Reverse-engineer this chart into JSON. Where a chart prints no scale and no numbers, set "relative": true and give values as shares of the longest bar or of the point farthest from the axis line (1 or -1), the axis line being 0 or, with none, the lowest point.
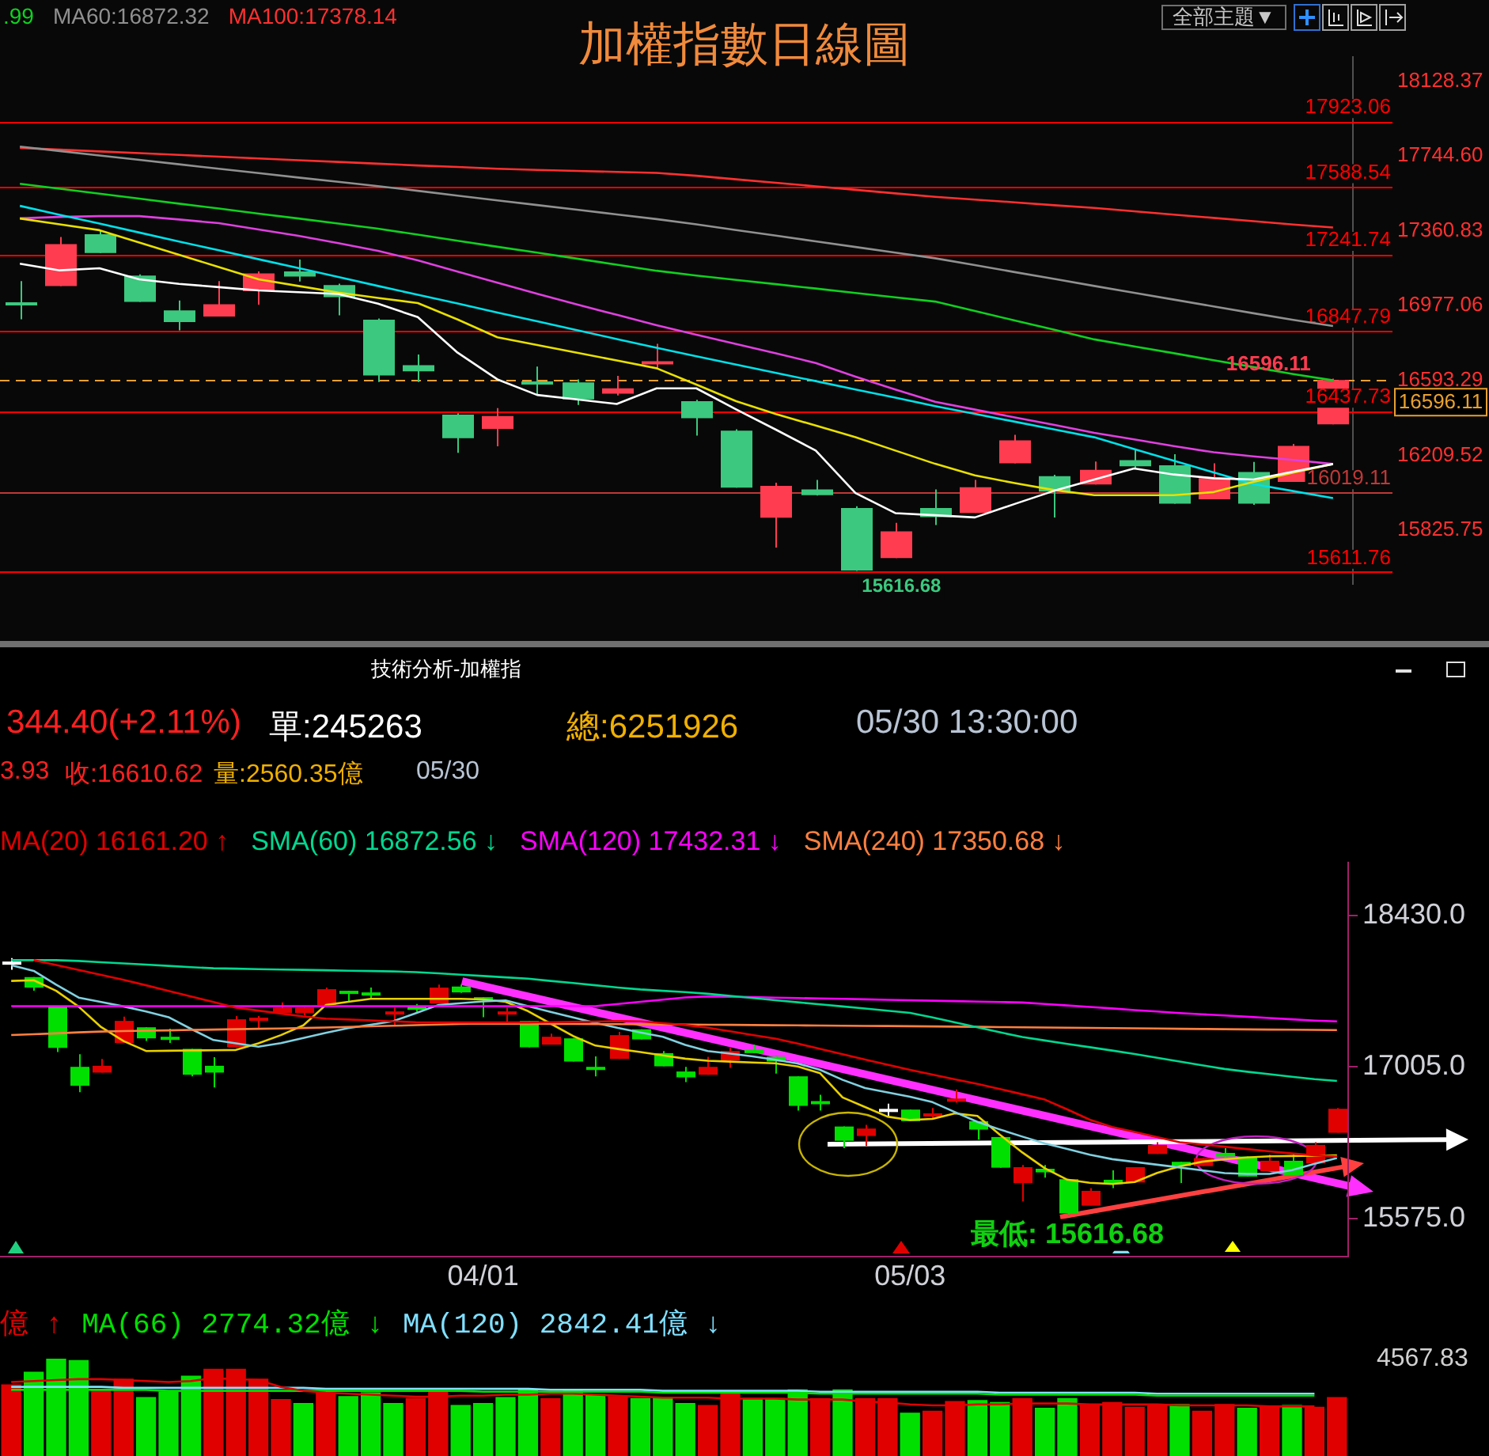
{
  "chart_data": [
    {
      "type": "candlestick",
      "title": "加權指數日線圖",
      "tick_labels": "y",
      "marker": "none",
      "categories": [
        null,
        null,
        null,
        null,
        null,
        null,
        null,
        null,
        null,
        null,
        null,
        null,
        null,
        null,
        null,
        null,
        null,
        null,
        null,
        null,
        null,
        null,
        null,
        null,
        null,
        null,
        null,
        null,
        null,
        null,
        null,
        null,
        null,
        null
      ],
      "ylim": [
        15548,
        18254
      ],
      "yticks": [
        {
          "value": 18128.37,
          "label": "18128.37"
        },
        {
          "value": 17744.6,
          "label": "17744.60"
        },
        {
          "value": 17360.83,
          "label": "17360.83"
        },
        {
          "value": 16977.06,
          "label": "16977.06"
        },
        {
          "value": 16593.29,
          "label": "16593.29"
        },
        {
          "value": 16209.52,
          "label": "16209.52"
        },
        {
          "value": 15825.75,
          "label": "15825.75"
        }
      ],
      "ohlc": [
        [
          16994,
          17103,
          16907,
          16989
        ],
        [
          17078,
          17329,
          17078,
          17293
        ],
        [
          17343,
          17364,
          17247,
          17247
        ],
        [
          17131,
          17137,
          16996,
          16996
        ],
        [
          16953,
          17003,
          16850,
          16893
        ],
        [
          16921,
          17103,
          16921,
          16984
        ],
        [
          17051,
          17153,
          16982,
          17142
        ],
        [
          17153,
          17213,
          17101,
          17126
        ],
        [
          17083,
          17090,
          16927,
          17021
        ],
        [
          16905,
          16911,
          16585,
          16619
        ],
        [
          16672,
          16726,
          16585,
          16640
        ],
        [
          16418,
          16425,
          16222,
          16297
        ],
        [
          16345,
          16452,
          16256,
          16411
        ],
        [
          16589,
          16665,
          16519,
          16585
        ],
        [
          16583,
          16599,
          16468,
          16496
        ],
        [
          16526,
          16617,
          16516,
          16553
        ],
        [
          16688,
          16781,
          16649,
          16692
        ],
        [
          16487,
          16494,
          16311,
          16400
        ],
        [
          16336,
          16343,
          16044,
          16044
        ],
        [
          15889,
          16069,
          15736,
          16053
        ],
        [
          16035,
          16083,
          16003,
          16005
        ],
        [
          15939,
          15948,
          15616.68,
          15619
        ],
        [
          15683,
          15863,
          15683,
          15820
        ],
        [
          15939,
          16035,
          15852,
          15893
        ],
        [
          15914,
          16083,
          15914,
          16046
        ],
        [
          16169,
          16315,
          16169,
          16286
        ],
        [
          16103,
          16110,
          15891,
          16023
        ],
        [
          16060,
          16178,
          16060,
          16135
        ],
        [
          16185,
          16238,
          16142,
          16153
        ],
        [
          16158,
          16215,
          15962,
          15962
        ],
        [
          15984,
          16169,
          15984,
          16092
        ],
        [
          16124,
          16176,
          15955,
          15962
        ],
        [
          16073,
          16268,
          16073,
          16258
        ],
        [
          16368,
          16603,
          16368,
          16596.11
        ]
      ],
      "colors": [
        "#3cc87e",
        "#ff3c50",
        "#3cc87e",
        "#3cc87e",
        "#3cc87e",
        "#ff3c50",
        "#ff3c50",
        "#3cc87e",
        "#3cc87e",
        "#3cc87e",
        "#3cc87e",
        "#3cc87e",
        "#ff3c50",
        "#3cc87e",
        "#3cc87e",
        "#ff3c50",
        "#ff3c50",
        "#3cc87e",
        "#3cc87e",
        "#ff3c50",
        "#3cc87e",
        "#3cc87e",
        "#ff3c50",
        "#3cc87e",
        "#ff3c50",
        "#ff3c50",
        "#3cc87e",
        "#ff3c50",
        "#3cc87e",
        "#3cc87e",
        "#ff3c50",
        "#3cc87e",
        "#ff3c50",
        "#ff3c50"
      ],
      "series": [
        {
          "type": "line",
          "name": ".99",
          "color": "#10d020",
          "values": [
            17602,
            17577,
            17551,
            17526,
            17500,
            17475,
            17449,
            17424,
            17398,
            17372,
            17341,
            17310,
            17279,
            17249,
            17218,
            17187,
            17156,
            17131,
            17109,
            17087,
            17065,
            17042,
            17020,
            16998,
            16950,
            16901,
            16853,
            16804,
            16768,
            16733,
            16697,
            16662,
            16626,
            16594
          ]
        },
        {
          "type": "line",
          "name": "MA60:16872.32",
          "color": "#909090",
          "values": [
            17793,
            17770,
            17747,
            17725,
            17702,
            17679,
            17657,
            17634,
            17612,
            17590,
            17566,
            17541,
            17517,
            17493,
            17469,
            17445,
            17421,
            17394,
            17365,
            17336,
            17307,
            17278,
            17249,
            17220,
            17185,
            17149,
            17114,
            17078,
            17043,
            17008,
            16973,
            16938,
            16904,
            16872.32
          ]
        },
        {
          "type": "line",
          "name": "MA100:17378.14",
          "color": "#ff3030",
          "values": [
            17786,
            17777,
            17768,
            17759,
            17750,
            17741,
            17732,
            17723,
            17714,
            17705,
            17696,
            17688,
            17679,
            17673,
            17668,
            17663,
            17658,
            17643,
            17625,
            17607,
            17589,
            17571,
            17553,
            17535,
            17521,
            17507,
            17492,
            17478,
            17461,
            17444,
            17427,
            17410,
            17393,
            17378.14
          ]
        },
        {
          "type": "line",
          "color": "#ffffff",
          "values": [
            17192,
            17158,
            17169,
            17112,
            17089,
            17072,
            17055,
            17046,
            17037,
            16987,
            16918,
            16736,
            16599,
            16519,
            16496,
            16473,
            16553,
            16553,
            16445,
            16341,
            16234,
            16016,
            15913,
            15902,
            15891,
            15960,
            16028,
            16085,
            16142,
            16111,
            16092,
            16085,
            16126,
            16165
          ]
        },
        {
          "type": "line",
          "color": "#e8e000",
          "values": [
            17424,
            17394,
            17364,
            17301,
            17238,
            17175,
            17112,
            17078,
            17044,
            17017,
            16990,
            16906,
            16815,
            16775,
            16736,
            16696,
            16656,
            16572,
            16487,
            16421,
            16362,
            16302,
            16234,
            16166,
            16107,
            16067,
            16031,
            16005,
            16005,
            16005,
            16021,
            16073,
            16121,
            16165
          ]
        },
        {
          "type": "line",
          "color": "#00e0e8",
          "values": [
            17489,
            17443,
            17398,
            17352,
            17306,
            17261,
            17215,
            17170,
            17124,
            17078,
            17033,
            16988,
            16942,
            16897,
            16851,
            16806,
            16761,
            16717,
            16675,
            16632,
            16590,
            16547,
            16505,
            16462,
            16422,
            16382,
            16342,
            16302,
            16242,
            16182,
            16122,
            16062,
            16026,
            15990
          ]
        },
        {
          "type": "line",
          "color": "#e040e0",
          "values": [
            17425,
            17432,
            17436,
            17436,
            17419,
            17400,
            17368,
            17335,
            17298,
            17258,
            17209,
            17152,
            17095,
            17038,
            16983,
            16930,
            16877,
            16828,
            16780,
            16733,
            16683,
            16613,
            16547,
            16484,
            16444,
            16404,
            16365,
            16325,
            16291,
            16257,
            16225,
            16204,
            16186,
            16165
          ]
        }
      ],
      "ref_lines": [
        {
          "axis": "y",
          "value": 17923.06,
          "label": "17923.06",
          "color": "#ff0000"
        },
        {
          "axis": "y",
          "value": 17588.54,
          "label": "17588.54",
          "color": "#ff0000"
        },
        {
          "axis": "y",
          "value": 17241.74,
          "label": "17241.74",
          "color": "#ff0000"
        },
        {
          "axis": "y",
          "value": 16847.79,
          "label": "16847.79",
          "color": "#ff0000"
        },
        {
          "axis": "y",
          "value": 16437.73,
          "label": "16437.73",
          "color": "#ff0000"
        },
        {
          "axis": "y",
          "value": 16019.11,
          "label": "16019.11",
          "color": "#c03838"
        },
        {
          "axis": "y",
          "value": 15611.76,
          "label": "15611.76",
          "color": "#ff0000"
        },
        {
          "axis": "y",
          "value": 16596.11,
          "label": "16596.11",
          "color": "#e8a030",
          "line_style": "dashed"
        }
      ],
      "annotations": [
        "全部主題▼",
        {
          "text": "15616.68",
          "y": 15616.68
        },
        {
          "text": "16596.11",
          "y": 16596.11
        }
      ]
    },
    {
      "type": "candlestick",
      "title": "技術分析-加權指",
      "marker": "none",
      "categories": [
        null,
        null,
        null,
        null,
        null,
        null,
        null,
        null,
        null,
        null,
        null,
        null,
        null,
        null,
        null,
        null,
        null,
        null,
        null,
        null,
        null,
        "04/01",
        null,
        null,
        null,
        null,
        null,
        null,
        null,
        null,
        null,
        null,
        null,
        null,
        null,
        null,
        null,
        null,
        null,
        null,
        "05/03",
        null,
        null,
        null,
        null,
        null,
        null,
        null,
        null,
        null,
        null,
        null,
        null,
        null,
        null,
        null,
        null,
        null,
        null,
        null
      ],
      "ylim": [
        15221,
        18926
      ],
      "yticks": [
        {
          "value": 18430,
          "label": "18430.0"
        },
        {
          "value": 17005,
          "label": "17005.0"
        },
        {
          "value": 15575,
          "label": "15575.0"
        }
      ],
      "ohlc": [
        [
          17995,
          18028,
          17918,
          17965
        ],
        [
          17849,
          17849,
          17720,
          17750
        ],
        [
          17576,
          17576,
          17144,
          17184
        ],
        [
          17005,
          17124,
          16767,
          16827
        ],
        [
          16951,
          17080,
          16951,
          17015
        ],
        [
          17229,
          17477,
          17229,
          17437
        ],
        [
          17377,
          17377,
          17248,
          17273
        ],
        [
          17288,
          17363,
          17229,
          17278
        ],
        [
          17174,
          17174,
          16916,
          16931
        ],
        [
          17015,
          17095,
          16812,
          16951
        ],
        [
          17189,
          17482,
          17189,
          17452
        ],
        [
          17457,
          17482,
          17363,
          17467
        ],
        [
          17511,
          17611,
          17511,
          17561
        ],
        [
          17511,
          17561,
          17487,
          17561
        ],
        [
          17586,
          17750,
          17586,
          17735
        ],
        [
          17720,
          17720,
          17621,
          17710
        ],
        [
          17705,
          17750,
          17645,
          17695
        ],
        [
          17516,
          17561,
          17387,
          17526
        ],
        [
          17571,
          17596,
          17521,
          17561
        ],
        [
          17601,
          17779,
          17601,
          17750
        ],
        [
          17760,
          17779,
          17700,
          17705
        ],
        [
          17660,
          17660,
          17472,
          17645
        ],
        [
          17497,
          17561,
          17422,
          17526
        ],
        [
          17437,
          17437,
          17189,
          17189
        ],
        [
          17214,
          17318,
          17214,
          17288
        ],
        [
          17273,
          17273,
          17055,
          17055
        ],
        [
          17005,
          17104,
          16916,
          16995
        ],
        [
          17080,
          17333,
          17080,
          17303
        ],
        [
          17358,
          17358,
          17263,
          17263
        ],
        [
          17134,
          17154,
          17010,
          17010
        ],
        [
          16961,
          17005,
          16861,
          16906
        ],
        [
          16931,
          17100,
          16931,
          17005
        ],
        [
          17065,
          17184,
          16995,
          17154
        ],
        [
          17164,
          17214,
          17134,
          17134
        ],
        [
          17100,
          17104,
          16941,
          17055
        ],
        [
          16916,
          16916,
          16593,
          16638
        ],
        [
          16683,
          16742,
          16593,
          16658
        ],
        [
          16444,
          16444,
          16241,
          16310
        ],
        [
          16355,
          16459,
          16261,
          16425
        ],
        [
          16610,
          16658,
          16534,
          16580
        ],
        [
          16603,
          16603,
          16494,
          16494
        ],
        [
          16544,
          16618,
          16519,
          16568
        ],
        [
          16693,
          16792,
          16668,
          16707
        ],
        [
          16494,
          16494,
          16320,
          16415
        ],
        [
          16345,
          16345,
          16057,
          16057
        ],
        [
          15913,
          16082,
          15740,
          16062
        ],
        [
          16047,
          16082,
          15963,
          16013
        ],
        [
          15948,
          15948,
          15616.68,
          15626
        ],
        [
          15700,
          15864,
          15700,
          15839
        ],
        [
          15943,
          16032,
          15864,
          15903
        ],
        [
          15918,
          16062,
          15918,
          16062
        ],
        [
          16186,
          16296,
          16186,
          16271
        ],
        [
          16112,
          16112,
          15913,
          16072
        ],
        [
          16072,
          16147,
          16072,
          16147
        ],
        [
          16196,
          16241,
          16122,
          16162
        ],
        [
          16162,
          16162,
          15973,
          15973
        ],
        [
          16023,
          16181,
          16023,
          16122
        ],
        [
          16122,
          16181,
          15988,
          15988
        ],
        [
          16097,
          16296,
          16097,
          16271
        ],
        [
          16385,
          16618,
          16385,
          16610.62
        ]
      ],
      "colors": [
        "#ffffff",
        "#00e000",
        "#00e000",
        "#00e000",
        "#e00000",
        "#e00000",
        "#00e000",
        "#00e000",
        "#00e000",
        "#00e000",
        "#e00000",
        "#e00000",
        "#e00000",
        "#e00000",
        "#e00000",
        "#00e000",
        "#00e000",
        "#e00000",
        "#00e000",
        "#e00000",
        "#00e000",
        "#00e000",
        "#e00000",
        "#00e000",
        "#e00000",
        "#00e000",
        "#00e000",
        "#e00000",
        "#00e000",
        "#00e000",
        "#00e000",
        "#e00000",
        "#e00000",
        "#00e000",
        "#00e000",
        "#00e000",
        "#00e000",
        "#00e000",
        "#e00000",
        "#ffffff",
        "#00e000",
        "#e00000",
        "#e00000",
        "#00e000",
        "#00e000",
        "#e00000",
        "#00e000",
        "#00e000",
        "#e00000",
        "#00e000",
        "#e00000",
        "#e00000",
        "#00e000",
        "#e00000",
        "#00e000",
        "#00e000",
        "#e00000",
        "#00e000",
        "#e00000",
        "#e00000"
      ],
      "series": [
        {
          "type": "line",
          "name": "MA(20) 16161.20 ↑",
          "color": "#e00000",
          "values": [
            null,
            18008,
            17962,
            17916,
            17869,
            17823,
            17772,
            17719,
            17666,
            17614,
            17561,
            17534,
            17506,
            17479,
            17459,
            17450,
            17442,
            17433,
            17425,
            17422,
            17422,
            17422,
            17422,
            17422,
            17425,
            17428,
            17431,
            17435,
            17433,
            17416,
            17398,
            17373,
            17339,
            17304,
            17270,
            17224,
            17174,
            17124,
            17074,
            17025,
            16977,
            16932,
            16888,
            16844,
            16797,
            16747,
            16697,
            16605,
            16508,
            16440,
            16392,
            16344,
            16296,
            16275,
            16254,
            16232,
            16211,
            16191,
            16173,
            16161.2
          ]
        },
        {
          "type": "line",
          "name": "SMA(60) 16872.56 ↓",
          "color": "#00d890",
          "values": [
            18008,
            18008,
            18008,
            18001,
            17989,
            17977,
            17966,
            17954,
            17942,
            17932,
            17928,
            17924,
            17920,
            17917,
            17913,
            17909,
            17906,
            17902,
            17896,
            17884,
            17871,
            17859,
            17846,
            17834,
            17813,
            17793,
            17772,
            17751,
            17733,
            17720,
            17708,
            17692,
            17672,
            17652,
            17632,
            17612,
            17593,
            17573,
            17553,
            17533,
            17513,
            17469,
            17423,
            17376,
            17330,
            17285,
            17253,
            17221,
            17190,
            17158,
            17125,
            17090,
            17055,
            17020,
            16985,
            16959,
            16936,
            16912,
            16889,
            16872.56
          ]
        },
        {
          "type": "line",
          "name": "SMA(120) 17432.31 ↓",
          "color": "#ff00ff",
          "values": [
            17576,
            17576,
            17576,
            17576,
            17576,
            17576,
            17576,
            17576,
            17576,
            17576,
            17576,
            17576,
            17576,
            17576,
            17576,
            17576,
            17576,
            17576,
            17576,
            17576,
            17576,
            17576,
            17576,
            17576,
            17576,
            17576,
            17576,
            17596,
            17617,
            17637,
            17658,
            17668,
            17664,
            17660,
            17656,
            17652,
            17648,
            17644,
            17640,
            17635,
            17631,
            17627,
            17623,
            17619,
            17615,
            17610,
            17596,
            17582,
            17568,
            17554,
            17539,
            17525,
            17511,
            17499,
            17488,
            17476,
            17464,
            17452,
            17440,
            17432.31
          ]
        },
        {
          "type": "line",
          "name": "SMA(240) 17350.68 ↓",
          "color": "#ff8040",
          "values": [
            17304,
            17312,
            17320,
            17329,
            17337,
            17341,
            17345,
            17348,
            17352,
            17355,
            17359,
            17363,
            17366,
            17370,
            17375,
            17380,
            17386,
            17391,
            17397,
            17403,
            17408,
            17412,
            17411,
            17410,
            17409,
            17408,
            17407,
            17406,
            17405,
            17404,
            17403,
            17401,
            17400,
            17398,
            17396,
            17395,
            17393,
            17392,
            17390,
            17389,
            17387,
            17385,
            17383,
            17381,
            17379,
            17377,
            17375,
            17373,
            17371,
            17369,
            17367,
            17365,
            17363,
            17361,
            17359,
            17357,
            17355,
            17354,
            17352,
            17350.68
          ]
        },
        {
          "type": "line",
          "color": "#80d0e0",
          "values": [
            17960,
            17907,
            17777,
            17656,
            17615,
            17573,
            17525,
            17472,
            17362,
            17257,
            17226,
            17195,
            17228,
            17276,
            17324,
            17369,
            17401,
            17434,
            17508,
            17586,
            17603,
            17620,
            17630,
            17576,
            17522,
            17470,
            17418,
            17371,
            17329,
            17288,
            17211,
            17154,
            17129,
            17103,
            17072,
            17036,
            16977,
            16883,
            16805,
            16765,
            16724,
            16673,
            16580,
            16488,
            16416,
            16349,
            16285,
            16232,
            16179,
            16137,
            16111,
            16085,
            16059,
            16032,
            16006,
            15998,
            15998,
            16034,
            16094,
            16147
          ]
        },
        {
          "type": "line",
          "color": "#e8d000",
          "values": [
            17813,
            17819,
            17720,
            17571,
            17379,
            17247,
            17154,
            17156,
            17159,
            17161,
            17164,
            17226,
            17303,
            17395,
            17586,
            17617,
            17645,
            17645,
            17645,
            17645,
            17645,
            17639,
            17617,
            17529,
            17412,
            17295,
            17205,
            17173,
            17144,
            17112,
            17082,
            17062,
            17054,
            17046,
            17038,
            17009,
            16945,
            16717,
            16627,
            16537,
            16505,
            16515,
            16568,
            16544,
            16367,
            16200,
            16051,
            15944,
            15915,
            15904,
            15922,
            16008,
            16069,
            16113,
            16136,
            16153,
            16164,
            16167,
            16170,
            16172
          ]
        }
      ],
      "annotations": [
        "344.40(+2.11%)",
        "單:245263",
        "總:6251926",
        "05/30 13:30:00",
        "3.93",
        "收:16610.62",
        "量:2560.35億",
        "05/30",
        {
          "text": "最低: 15616.68",
          "y": 15616.68
        }
      ]
    },
    {
      "type": "bar",
      "relative": true,
      "tick_labels": false,
      "marker": "none",
      "categories": [
        null,
        null,
        null,
        null,
        null,
        null,
        null,
        null,
        null,
        null,
        null,
        null,
        null,
        null,
        null,
        null,
        null,
        null,
        null,
        null,
        null,
        null,
        null,
        null,
        null,
        null,
        null,
        null,
        null,
        null,
        null,
        null,
        null,
        null,
        null,
        null,
        null,
        null,
        null,
        null,
        null,
        null,
        null,
        null,
        null,
        null,
        null,
        null,
        null,
        null,
        null,
        null,
        null,
        null,
        null,
        null,
        null,
        null,
        null,
        null
      ],
      "values": [
        0.73,
        0.86,
        1,
        0.98,
        0.68,
        0.79,
        0.6,
        0.66,
        0.82,
        0.89,
        0.89,
        0.79,
        0.58,
        0.54,
        0.65,
        0.61,
        0.65,
        0.54,
        0.59,
        0.66,
        0.52,
        0.54,
        0.6,
        0.68,
        0.59,
        0.68,
        0.63,
        0.61,
        0.59,
        0.59,
        0.54,
        0.52,
        0.65,
        0.59,
        0.59,
        0.68,
        0.59,
        0.68,
        0.59,
        0.59,
        0.44,
        0.46,
        0.56,
        0.57,
        0.55,
        0.59,
        0.49,
        0.59,
        0.53,
        0.55,
        0.5,
        0.53,
        0.53,
        0.46,
        0.53,
        0.49,
        0.5,
        0.52,
        0.5,
        0.6
      ],
      "colors": [
        "#e00000",
        "#00e000",
        "#00e000",
        "#00e000",
        "#e00000",
        "#e00000",
        "#00e000",
        "#00e000",
        "#00e000",
        "#e00000",
        "#e00000",
        "#e00000",
        "#e00000",
        "#00e000",
        "#e00000",
        "#00e000",
        "#00e000",
        "#00e000",
        "#e00000",
        "#e00000",
        "#00e000",
        "#00e000",
        "#00e000",
        "#00e000",
        "#e00000",
        "#00e000",
        "#00e000",
        "#e00000",
        "#00e000",
        "#00e000",
        "#00e000",
        "#e00000",
        "#e00000",
        "#00e000",
        "#00e000",
        "#00e000",
        "#e00000",
        "#00e000",
        "#e00000",
        "#e00000",
        "#00e000",
        "#e00000",
        "#e00000",
        "#00e000",
        "#00e000",
        "#e00000",
        "#00e000",
        "#00e000",
        "#e00000",
        "#e00000",
        "#e00000",
        "#e00000",
        "#00e000",
        "#e00000",
        "#e00000",
        "#00e000",
        "#e00000",
        "#00e000",
        "#e00000",
        "#e00000"
      ],
      "series": [
        {
          "type": "line",
          "name": "億 ↑",
          "color": "#e00000",
          "values": [
            0.76,
            0.77,
            0.78,
            0.79,
            0.79,
            0.78,
            0.77,
            0.76,
            0.77,
            0.8,
            0.79,
            0.78,
            0.71,
            0.67,
            0.65,
            0.64,
            0.63,
            0.62,
            0.61,
            0.61,
            0.62,
            0.62,
            0.63,
            0.63,
            0.64,
            0.64,
            0.63,
            0.62,
            0.61,
            0.6,
            0.6,
            0.6,
            0.59,
            0.59,
            0.59,
            0.58,
            0.58,
            0.58,
            0.56,
            0.55,
            0.53,
            0.52,
            0.52,
            0.53,
            0.53,
            0.54,
            0.54,
            0.54,
            0.53,
            0.53,
            0.53,
            0.53,
            0.52,
            0.52,
            0.52,
            0.52,
            0.51,
            0.51,
            0.51,
            null
          ]
        },
        {
          "type": "line",
          "name": "MA(66) 2774.32億 ↓",
          "color": "#00e000",
          "values": [
            0.68,
            0.68,
            0.68,
            0.68,
            0.68,
            0.68,
            0.68,
            0.67,
            0.67,
            0.67,
            0.67,
            0.67,
            0.67,
            0.67,
            0.67,
            0.67,
            0.67,
            0.67,
            0.67,
            0.67,
            0.67,
            0.66,
            0.66,
            0.66,
            0.66,
            0.66,
            0.66,
            0.66,
            0.66,
            0.65,
            0.65,
            0.65,
            0.65,
            0.65,
            0.65,
            0.65,
            0.64,
            0.64,
            0.64,
            0.64,
            0.64,
            0.64,
            0.64,
            0.64,
            0.63,
            0.63,
            0.63,
            0.63,
            0.63,
            0.63,
            0.63,
            0.62,
            0.62,
            0.62,
            0.62,
            0.62,
            0.62,
            0.62,
            0.62,
            null
          ]
        },
        {
          "type": "line",
          "name": "MA(120) 2842.41億 ↓",
          "color": "#80e0ff",
          "values": [
            0.71,
            0.71,
            0.71,
            0.71,
            0.71,
            0.7,
            0.7,
            0.7,
            0.7,
            0.7,
            0.7,
            0.7,
            0.7,
            0.7,
            0.69,
            0.69,
            0.69,
            0.69,
            0.69,
            0.69,
            0.69,
            0.69,
            0.69,
            0.69,
            0.68,
            0.68,
            0.68,
            0.68,
            0.68,
            0.67,
            0.67,
            0.67,
            0.67,
            0.67,
            0.67,
            0.67,
            0.66,
            0.66,
            0.66,
            0.66,
            0.66,
            0.66,
            0.66,
            0.66,
            0.65,
            0.65,
            0.65,
            0.65,
            0.65,
            0.65,
            0.65,
            0.64,
            0.64,
            0.64,
            0.64,
            0.64,
            0.64,
            0.64,
            0.64,
            null
          ]
        }
      ],
      "annotations": [
        "4567.83"
      ]
    }
  ]
}
